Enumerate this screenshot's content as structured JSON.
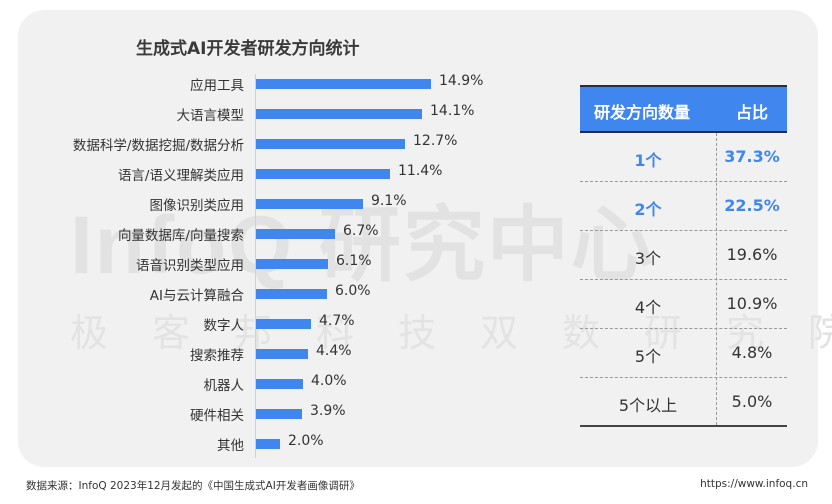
{
  "chart_data": [
    {
      "type": "bar",
      "orientation": "horizontal",
      "title": "生成式AI开发者研发方向统计",
      "categories": [
        "应用工具",
        "大语言模型",
        "数据科学/数据挖掘/数据分析",
        "语言/语义理解类应用",
        "图像识别类应用",
        "向量数据库/向量搜索",
        "语音识别类型应用",
        "AI与云计算融合",
        "数字人",
        "搜索推荐",
        "机器人",
        "硬件相关",
        "其他"
      ],
      "values": [
        14.9,
        14.1,
        12.7,
        11.4,
        9.1,
        6.7,
        6.1,
        6.0,
        4.7,
        4.4,
        4.0,
        3.9,
        2.0
      ],
      "value_labels": [
        "14.9%",
        "14.1%",
        "12.7%",
        "11.4%",
        "9.1%",
        "6.7%",
        "6.1%",
        "6.0%",
        "4.7%",
        "4.4%",
        "4.0%",
        "3.9%",
        "2.0%"
      ],
      "unit": "%",
      "xlabel": "",
      "ylabel": "",
      "grid": false,
      "bar_color": "#3f86ee"
    },
    {
      "type": "table",
      "columns": [
        "研发方向数量",
        "占比"
      ],
      "rows": [
        [
          "1个",
          "37.3%"
        ],
        [
          "2个",
          "22.5%"
        ],
        [
          "3个",
          "19.6%"
        ],
        [
          "4个",
          "10.9%"
        ],
        [
          "5个",
          "4.8%"
        ],
        [
          "5个以上",
          "5.0%"
        ]
      ],
      "highlighted_rows": [
        0,
        1
      ],
      "header_color": "#3f86ee"
    }
  ],
  "header": {
    "title": "生成式AI开发者研发方向统计"
  },
  "watermark": {
    "main": "InfoQ 研究中心",
    "sub": "极客邦科技双数研究院"
  },
  "bars": [
    {
      "label": "应用工具",
      "value": 14.9,
      "text": "14.9%"
    },
    {
      "label": "大语言模型",
      "value": 14.1,
      "text": "14.1%"
    },
    {
      "label": "数据科学/数据挖掘/数据分析",
      "value": 12.7,
      "text": "12.7%"
    },
    {
      "label": "语言/语义理解类应用",
      "value": 11.4,
      "text": "11.4%"
    },
    {
      "label": "图像识别类应用",
      "value": 9.1,
      "text": "9.1%"
    },
    {
      "label": "向量数据库/向量搜索",
      "value": 6.7,
      "text": "6.7%"
    },
    {
      "label": "语音识别类型应用",
      "value": 6.1,
      "text": "6.1%"
    },
    {
      "label": "AI与云计算融合",
      "value": 6.0,
      "text": "6.0%"
    },
    {
      "label": "数字人",
      "value": 4.7,
      "text": "4.7%"
    },
    {
      "label": "搜索推荐",
      "value": 4.4,
      "text": "4.4%"
    },
    {
      "label": "机器人",
      "value": 4.0,
      "text": "4.0%"
    },
    {
      "label": "硬件相关",
      "value": 3.9,
      "text": "3.9%"
    },
    {
      "label": "其他",
      "value": 2.0,
      "text": "2.0%"
    }
  ],
  "table": {
    "headers": [
      "研发方向数量",
      "占比"
    ],
    "rows": [
      {
        "count": "1个",
        "share": "37.3%"
      },
      {
        "count": "2个",
        "share": "22.5%"
      },
      {
        "count": "3个",
        "share": "19.6%"
      },
      {
        "count": "4个",
        "share": "10.9%"
      },
      {
        "count": "5个",
        "share": "4.8%"
      },
      {
        "count": "5个以上",
        "share": "5.0%"
      }
    ]
  },
  "footer": {
    "source": "数据来源：InfoQ 2023年12月发起的《中国生成式AI开发者画像调研》",
    "url": "https://www.infoq.cn"
  },
  "colors": {
    "accent": "#3f86ee",
    "card_bg": "#f1f1f1",
    "text": "#333333"
  }
}
